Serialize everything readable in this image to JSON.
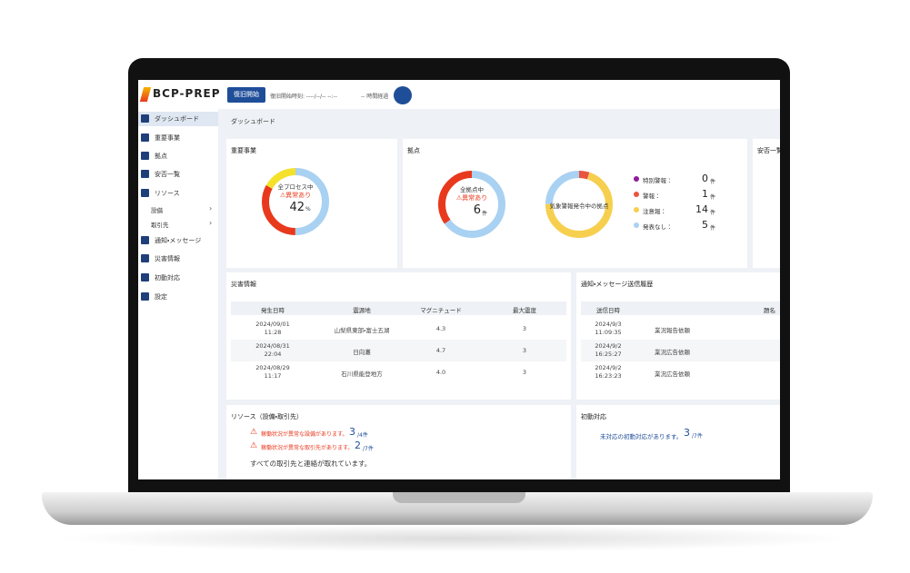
{
  "header": {
    "logo": "BCP-PREP",
    "start_button": "復旧開始",
    "start_time": "復旧開始時刻: ----/--/-- --:--",
    "elapsed": "-- 時間経過"
  },
  "sidebar": {
    "items": [
      "ダッシュボード",
      "重要事業",
      "拠点",
      "安否一覧",
      "リソース",
      "設備",
      "取引先",
      "通知・メッセージ",
      "災害情報",
      "初動対応",
      "設定"
    ]
  },
  "page_title": "ダッシュボード",
  "important_business": {
    "title": "重要事業",
    "center_label": "全プロセス中",
    "status": "異常あり",
    "value": 42,
    "unit": "%",
    "segments": [
      {
        "color": "#a9d1f2",
        "value": 50
      },
      {
        "color": "#e8391d",
        "value": 33
      },
      {
        "color": "#f4e12c",
        "value": 17
      }
    ]
  },
  "bases": {
    "title": "拠点",
    "center_label": "全拠点中",
    "status": "異常あり",
    "value": 6,
    "unit": "件",
    "segments": [
      {
        "color": "#a9d1f2",
        "value": 65
      },
      {
        "color": "#e8391d",
        "value": 35
      }
    ],
    "weather_label": "気象警報発令中の拠点",
    "legend": [
      {
        "name": "特別警報：",
        "color": "#8e1c9c",
        "value": 0,
        "unit": "件"
      },
      {
        "name": "警報：",
        "color": "#e8543f",
        "value": 1,
        "unit": "件"
      },
      {
        "name": "注意報：",
        "color": "#f7cf4e",
        "value": 14,
        "unit": "件"
      },
      {
        "name": "発表なし：",
        "color": "#a9d1f2",
        "value": 5,
        "unit": "件"
      }
    ]
  },
  "safety": {
    "title": "安否一覧"
  },
  "disaster": {
    "title": "災害情報",
    "columns": [
      "発生日時",
      "震源地",
      "マグニチュード",
      "最大震度"
    ],
    "rows": [
      [
        "2024/09/01",
        "11:28",
        "山梨県東部・富士五湖",
        "4.3",
        "3"
      ],
      [
        "2024/08/31",
        "22:04",
        "日向灘",
        "4.7",
        "3"
      ],
      [
        "2024/08/29",
        "11:17",
        "石川県能登地方",
        "4.0",
        "3"
      ]
    ]
  },
  "notifications": {
    "title": "通知・メッセージ送信履歴",
    "columns": [
      "送信日時",
      "題名"
    ],
    "rows": [
      [
        "2024/9/3",
        "11:09:35",
        "業況報告依頼"
      ],
      [
        "2024/9/2",
        "16:25:27",
        "業況広告依頼"
      ],
      [
        "2024/9/2",
        "16:23:23",
        "業況広告依頼"
      ]
    ]
  },
  "resources": {
    "title": "リソース（設備・取引先）",
    "alerts": [
      {
        "text": "稼働状況が異常な設備があります。",
        "count": 3,
        "total": "/4件"
      },
      {
        "text": "稼働状況が異常な取引先があります。",
        "count": 2,
        "total": "/7件"
      }
    ],
    "note": "すべての取引先と連絡が取れています。"
  },
  "initial_response": {
    "title": "初動対応",
    "text": "未対応の初動対応があります。",
    "count": 3,
    "total": "/7件"
  }
}
